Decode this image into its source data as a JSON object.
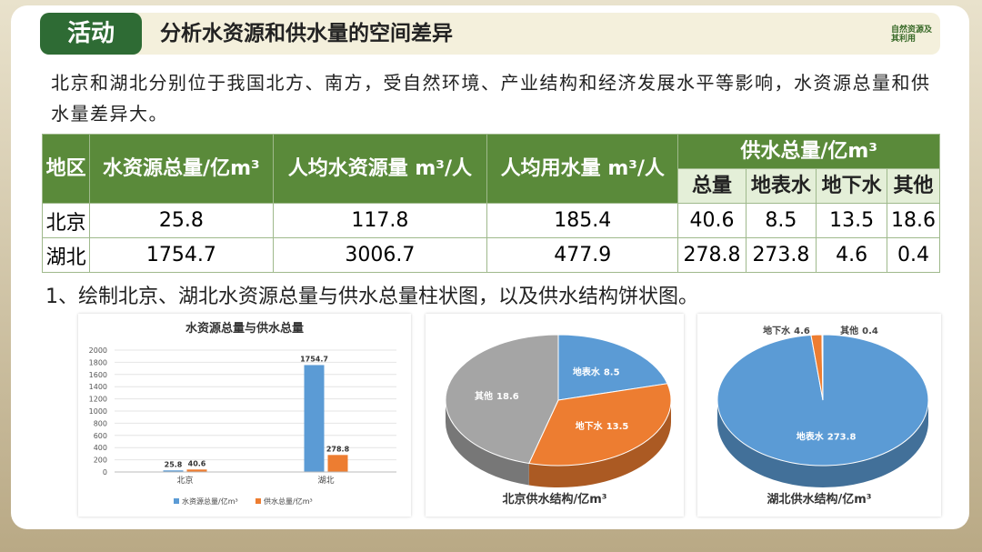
{
  "header": {
    "badge": "活动",
    "title": "分析水资源和供水量的空间差异",
    "logo": "自然资源及其利用"
  },
  "intro": "北京和湖北分别位于我国北方、南方，受自然环境、产业结构和经济发展水平等影响，水资源总量和供水量差异大。",
  "table": {
    "headers": [
      "地区",
      "水资源总量/亿m³",
      "人均水资源量 m³/人",
      "人均用水量 m³/人",
      "供水总量/亿m³"
    ],
    "subheaders": [
      "总量",
      "地表水",
      "地下水",
      "其他"
    ],
    "rows": [
      [
        "北京",
        25.8,
        117.8,
        185.4,
        40.6,
        8.5,
        13.5,
        18.6
      ],
      [
        "湖北",
        1754.7,
        3006.7,
        477.9,
        278.8,
        273.8,
        4.6,
        0.4
      ]
    ]
  },
  "task": "1、绘制北京、湖北水资源总量与供水总量柱状图，以及供水结构饼状图。",
  "chart_data": [
    {
      "type": "bar",
      "title": "水资源总量与供水总量",
      "categories": [
        "北京",
        "湖北"
      ],
      "series": [
        {
          "name": "水资源总量/亿m³",
          "color": "#5b9bd5",
          "values": [
            25.8,
            1754.7
          ]
        },
        {
          "name": "供水总量/亿m³",
          "color": "#ed7d31",
          "values": [
            40.6,
            278.8
          ]
        }
      ],
      "ylim": [
        0,
        2000
      ],
      "yticks": [
        0,
        200,
        400,
        600,
        800,
        1000,
        1200,
        1400,
        1600,
        1800,
        2000
      ],
      "grid": true,
      "legend": "bottom"
    },
    {
      "type": "pie",
      "title": "北京供水结构/亿m³",
      "categories": [
        "地表水",
        "地下水",
        "其他"
      ],
      "values": [
        8.5,
        13.5,
        18.6
      ],
      "colors": [
        "#5b9bd5",
        "#ed7d31",
        "#a5a5a5"
      ]
    },
    {
      "type": "pie",
      "title": "湖北供水结构/亿m³",
      "categories": [
        "地表水",
        "地下水",
        "其他"
      ],
      "values": [
        273.8,
        4.6,
        0.4
      ],
      "colors": [
        "#5b9bd5",
        "#ed7d31",
        "#a5a5a5"
      ]
    }
  ]
}
